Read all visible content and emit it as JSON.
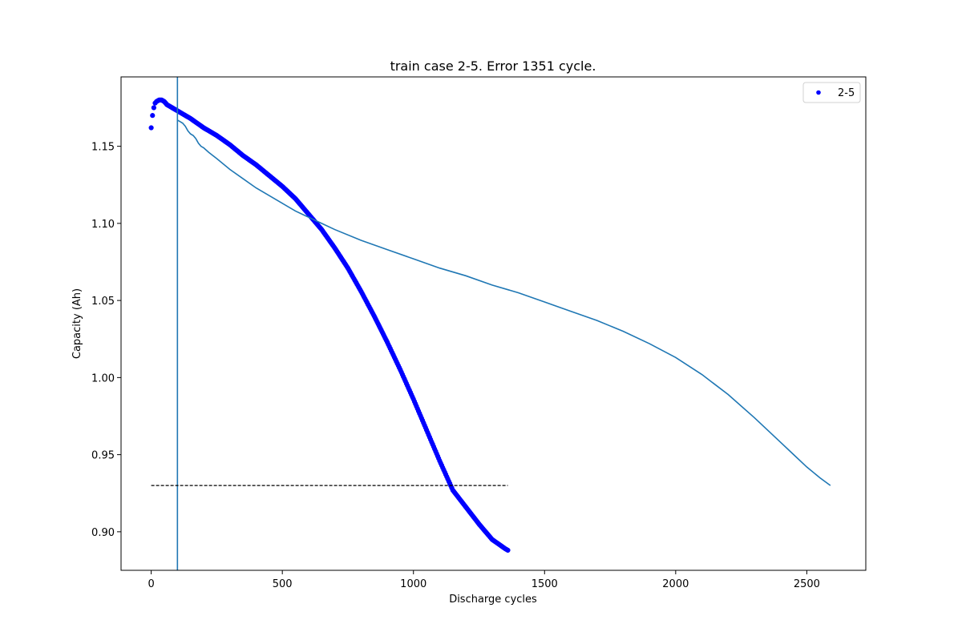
{
  "chart_data": {
    "type": "scatter",
    "title": "train case 2-5. Error 1351 cycle.",
    "xlabel": "Discharge cycles",
    "ylabel": "Capacity (Ah)",
    "xlim": [
      -115,
      2725
    ],
    "ylim": [
      0.875,
      1.195
    ],
    "xticks": [
      0,
      500,
      1000,
      1500,
      2000,
      2500
    ],
    "yticks": [
      0.9,
      0.95,
      1.0,
      1.05,
      1.1,
      1.15
    ],
    "xtick_labels": [
      "0",
      "500",
      "1000",
      "1500",
      "2000",
      "2500"
    ],
    "ytick_labels": [
      "0.90",
      "0.95",
      "1.00",
      "1.05",
      "1.10",
      "1.15"
    ],
    "grid": false,
    "legend": {
      "placement": "top-right",
      "entries": [
        {
          "label": "2-5",
          "color": "#0000ff",
          "marker": "dot"
        }
      ]
    },
    "series": [
      {
        "name": "2-5",
        "kind": "scatter",
        "color": "#0000ff",
        "x": [
          0,
          5,
          10,
          15,
          20,
          30,
          40,
          50,
          60,
          70,
          80,
          90,
          100,
          150,
          200,
          250,
          300,
          350,
          400,
          450,
          500,
          550,
          600,
          650,
          700,
          750,
          800,
          850,
          900,
          950,
          1000,
          1050,
          1100,
          1150,
          1200,
          1250,
          1300,
          1350,
          1360
        ],
        "y": [
          1.162,
          1.17,
          1.175,
          1.178,
          1.179,
          1.18,
          1.18,
          1.179,
          1.177,
          1.176,
          1.175,
          1.174,
          1.173,
          1.168,
          1.162,
          1.157,
          1.151,
          1.144,
          1.138,
          1.131,
          1.124,
          1.116,
          1.106,
          1.096,
          1.084,
          1.071,
          1.056,
          1.04,
          1.023,
          1.005,
          0.986,
          0.966,
          0.946,
          0.927,
          0.916,
          0.905,
          0.895,
          0.889,
          0.888
        ]
      },
      {
        "name": "",
        "kind": "line",
        "color": "#1f77b4",
        "x": [
          100,
          110,
          120,
          130,
          140,
          150,
          160,
          170,
          180,
          190,
          200,
          220,
          250,
          300,
          350,
          400,
          450,
          500,
          550,
          600,
          650,
          700,
          800,
          900,
          1000,
          1100,
          1200,
          1300,
          1400,
          1500,
          1600,
          1700,
          1800,
          1900,
          2000,
          2100,
          2200,
          2300,
          2400,
          2450,
          2500,
          2550,
          2590
        ],
        "y": [
          1.167,
          1.166,
          1.165,
          1.163,
          1.16,
          1.158,
          1.157,
          1.155,
          1.152,
          1.15,
          1.149,
          1.146,
          1.142,
          1.135,
          1.129,
          1.123,
          1.118,
          1.113,
          1.108,
          1.104,
          1.1,
          1.096,
          1.089,
          1.083,
          1.077,
          1.071,
          1.066,
          1.06,
          1.055,
          1.049,
          1.043,
          1.037,
          1.03,
          1.022,
          1.013,
          1.002,
          0.989,
          0.974,
          0.958,
          0.95,
          0.942,
          0.935,
          0.93
        ]
      }
    ],
    "vline": {
      "x": 100,
      "color": "#1f77b4"
    },
    "hline": {
      "y": 0.93,
      "x_start": 0,
      "x_end": 1360,
      "color": "#000000",
      "style": "dashed"
    }
  }
}
